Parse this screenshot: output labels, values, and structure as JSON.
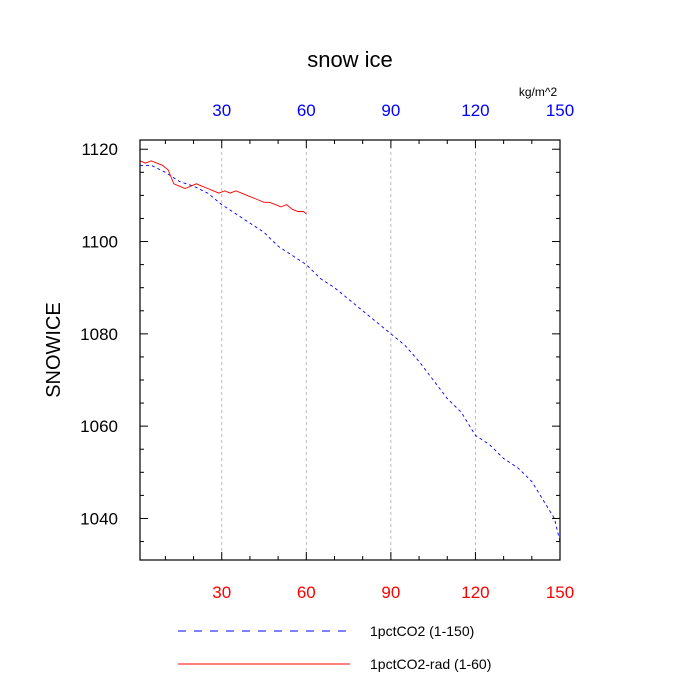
{
  "chart_data": {
    "type": "line",
    "title": "snow ice",
    "ylabel": "SNOWICE",
    "top_axis_unit": "kg/m^2",
    "xlim": [
      1,
      150
    ],
    "ylim": [
      1031,
      1122
    ],
    "x_ticks": [
      30,
      60,
      90,
      120,
      150
    ],
    "x_tick_labels": [
      "30",
      "60",
      "90",
      "120",
      "150"
    ],
    "y_ticks": [
      1040,
      1060,
      1080,
      1100,
      1120
    ],
    "y_tick_labels": [
      "1040",
      "1060",
      "1080",
      "1100",
      "1120"
    ],
    "y_minor_step": 5,
    "grid": "vertical dashed at x ticks",
    "top_axis_color": "#0000ff",
    "bottom_axis_color": "#ff0000",
    "legend_position": "bottom",
    "series": [
      {
        "name": "1pctCO2 (1-150)",
        "color": "#0000ff",
        "dash": "dashed",
        "x": [
          1,
          5,
          10,
          15,
          20,
          25,
          30,
          35,
          40,
          45,
          50,
          55,
          60,
          65,
          70,
          75,
          80,
          85,
          90,
          95,
          100,
          105,
          110,
          115,
          120,
          125,
          130,
          135,
          140,
          145,
          148,
          150
        ],
        "y": [
          1116.5,
          1116.5,
          1115,
          1113,
          1112,
          1110.5,
          1108,
          1106,
          1104,
          1102,
          1099,
          1097,
          1095,
          1092,
          1090,
          1087.5,
          1085,
          1082.5,
          1080,
          1077.5,
          1074,
          1070,
          1066,
          1063,
          1058,
          1056,
          1053,
          1051,
          1048,
          1043,
          1040,
          1035
        ]
      },
      {
        "name": "1pctCO2-rad (1-60)",
        "color": "#ff0000",
        "dash": "solid",
        "x": [
          1,
          3,
          5,
          7,
          9,
          11,
          13,
          15,
          17,
          19,
          21,
          23,
          25,
          27,
          29,
          31,
          33,
          35,
          37,
          39,
          41,
          43,
          45,
          47,
          49,
          51,
          53,
          55,
          57,
          59,
          60
        ],
        "y": [
          1117.5,
          1117,
          1117.5,
          1117,
          1116.5,
          1115.5,
          1112.5,
          1112,
          1111.5,
          1112,
          1112.5,
          1112,
          1111.5,
          1111,
          1110.5,
          1111,
          1110.5,
          1111,
          1110.5,
          1110,
          1109.5,
          1109,
          1108.5,
          1108.5,
          1108,
          1107.5,
          1108,
          1107,
          1106.5,
          1106.5,
          1106
        ]
      }
    ]
  }
}
